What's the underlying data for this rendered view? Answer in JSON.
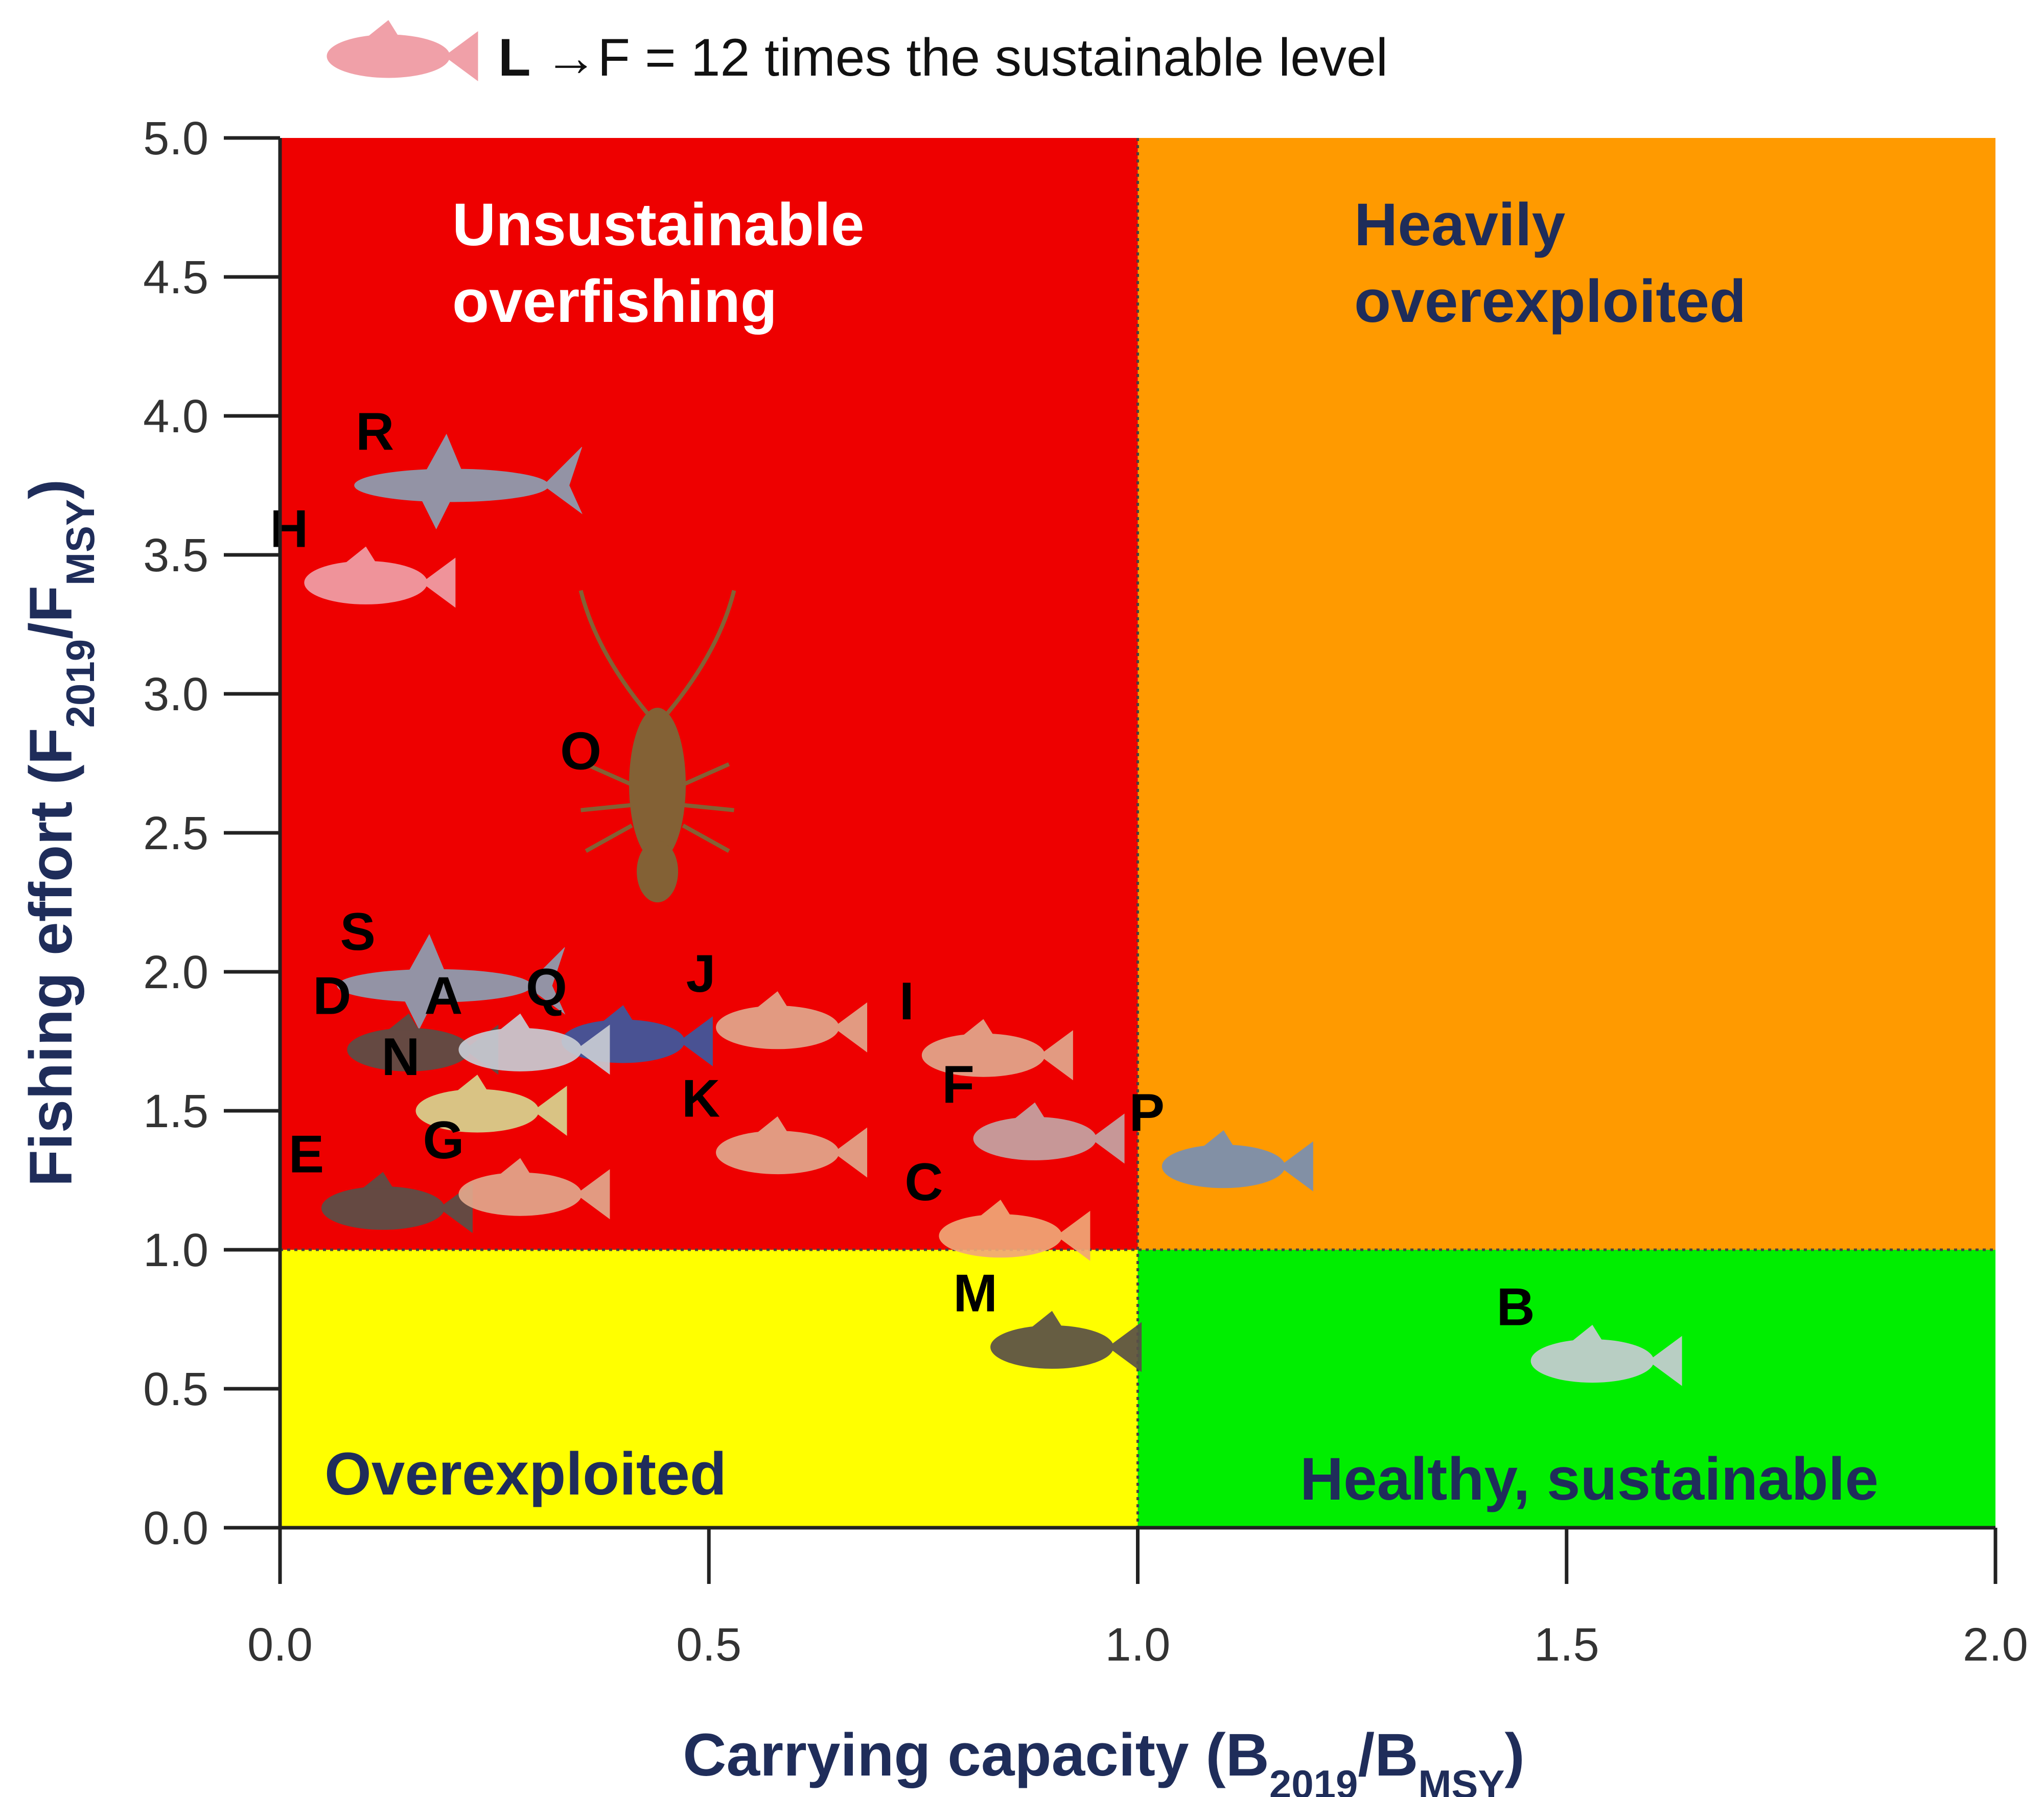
{
  "chart_data": {
    "type": "scatter",
    "xlabel": {
      "main": "Carrying capacity (B",
      "sub1": "2019",
      "mid": "/B",
      "sub2": "MSY",
      "end": ")"
    },
    "ylabel": {
      "main": "Fishing effort (F",
      "sub1": "2019",
      "mid": "/F",
      "sub2": "MSY",
      "end": ")"
    },
    "xlim": [
      0.0,
      2.0
    ],
    "ylim": [
      0.0,
      5.0
    ],
    "x_ticks": [
      "0.0",
      "0.5",
      "1.0",
      "1.5",
      "2.0"
    ],
    "y_ticks": [
      "0.0",
      "0.5",
      "1.0",
      "1.5",
      "2.0",
      "2.5",
      "3.0",
      "3.5",
      "4.0",
      "4.5",
      "5.0"
    ],
    "thresholds": {
      "x": 1.0,
      "y": 1.0
    },
    "quadrants": [
      {
        "id": "unsustainable",
        "lines": [
          "Unsustainable",
          "overfishing"
        ],
        "color": "#ee0000",
        "text_color": "#ffffff"
      },
      {
        "id": "heavily",
        "lines": [
          "Heavily",
          "overexploited"
        ],
        "color": "#ff9a00",
        "text_color": "#1f2d5a"
      },
      {
        "id": "overexploited",
        "lines": [
          "Overexploited"
        ],
        "color": "#ffff00",
        "text_color": "#1f2d5a"
      },
      {
        "id": "healthy",
        "lines": [
          "Healthy, sustainable"
        ],
        "color": "#00ee00",
        "text_color": "#1f2d5a"
      }
    ],
    "points": [
      {
        "label": "R",
        "x": 0.2,
        "y": 3.75,
        "icon": "shark-icon"
      },
      {
        "label": "H",
        "x": 0.1,
        "y": 3.4,
        "icon": "red-snapper-icon"
      },
      {
        "label": "O",
        "x": 0.44,
        "y": 2.6,
        "icon": "lobster-icon"
      },
      {
        "label": "S",
        "x": 0.18,
        "y": 1.95,
        "icon": "shark-icon"
      },
      {
        "label": "D",
        "x": 0.15,
        "y": 1.72,
        "icon": "grouper-icon"
      },
      {
        "label": "Q",
        "x": 0.4,
        "y": 1.75,
        "icon": "mackerel-icon"
      },
      {
        "label": "A",
        "x": 0.28,
        "y": 1.72,
        "icon": "jack-icon"
      },
      {
        "label": "J",
        "x": 0.58,
        "y": 1.8,
        "icon": "snapper-icon"
      },
      {
        "label": "I",
        "x": 0.82,
        "y": 1.7,
        "icon": "snapper-icon"
      },
      {
        "label": "F",
        "x": 0.88,
        "y": 1.4,
        "icon": "conch-icon"
      },
      {
        "label": "N",
        "x": 0.23,
        "y": 1.5,
        "icon": "yellowtail-icon"
      },
      {
        "label": "K",
        "x": 0.58,
        "y": 1.35,
        "icon": "snapper-icon"
      },
      {
        "label": "E",
        "x": 0.12,
        "y": 1.15,
        "icon": "grouper-icon"
      },
      {
        "label": "G",
        "x": 0.28,
        "y": 1.2,
        "icon": "snapper-icon"
      },
      {
        "label": "C",
        "x": 0.84,
        "y": 1.05,
        "icon": "fish-icon"
      },
      {
        "label": "P",
        "x": 1.1,
        "y": 1.3,
        "icon": "tuna-icon"
      },
      {
        "label": "M",
        "x": 0.9,
        "y": 0.65,
        "icon": "grouper-icon"
      },
      {
        "label": "B",
        "x": 1.53,
        "y": 0.6,
        "icon": "jack-icon"
      }
    ],
    "annotation": {
      "icon": "red-snapper-icon",
      "label": "L",
      "arrow": "→",
      "text": "F = 12 times the sustainable level"
    }
  }
}
